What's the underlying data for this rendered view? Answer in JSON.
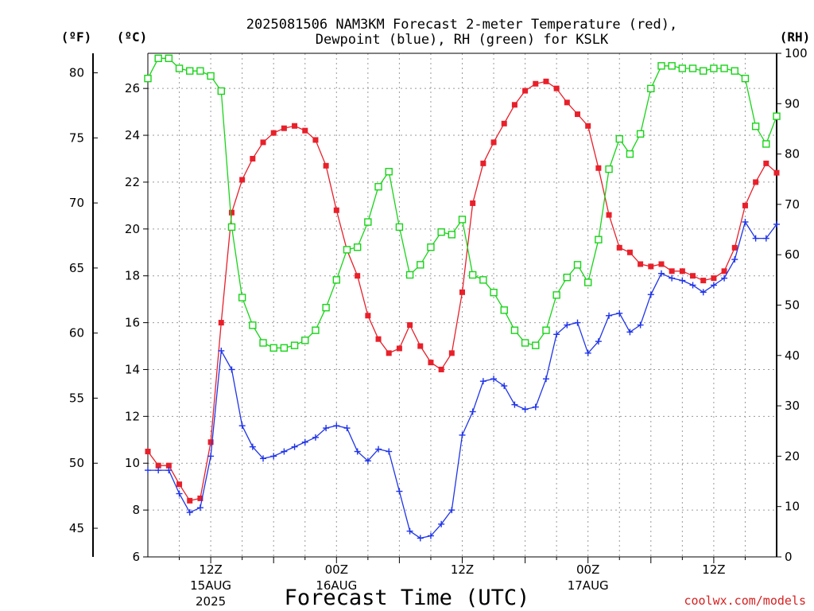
{
  "chart_data": {
    "type": "line",
    "title_line1": "2025081506 NAM3KM Forecast 2-meter Temperature (red),",
    "title_line2": "Dewpoint (blue), RH (green) for KSLK",
    "xlabel": "Forecast Time (UTC)",
    "credit": "coolwx.com/models",
    "units": {
      "left_f": "(ºF)",
      "left_c": "(ºC)",
      "right": "(RH)"
    },
    "celsius_axis": {
      "ylim": [
        6,
        27.5
      ],
      "ticks": [
        6,
        8,
        10,
        12,
        14,
        16,
        18,
        20,
        22,
        24,
        26
      ]
    },
    "fahrenheit_axis": {
      "ticks": [
        45,
        50,
        55,
        60,
        65,
        70,
        75,
        80
      ]
    },
    "rh_axis": {
      "ylim": [
        0,
        100
      ],
      "ticks": [
        0,
        10,
        20,
        30,
        40,
        50,
        60,
        70,
        80,
        90,
        100
      ]
    },
    "x_ticks": [
      {
        "hour": 6,
        "line1": "12Z",
        "line2": "15AUG",
        "line3": "2025"
      },
      {
        "hour": 18,
        "line1": "00Z",
        "line2": "16AUG",
        "line3": ""
      },
      {
        "hour": 30,
        "line1": "12Z",
        "line2": "",
        "line3": ""
      },
      {
        "hour": 42,
        "line1": "00Z",
        "line2": "17AUG",
        "line3": ""
      },
      {
        "hour": 54,
        "line1": "12Z",
        "line2": "",
        "line3": ""
      }
    ],
    "xlim": [
      0,
      60
    ],
    "grid": true,
    "series": [
      {
        "name": "Temperature (red)",
        "color": "#e8202a",
        "marker": "filled-square",
        "axis": "celsius",
        "x": [
          0,
          1,
          2,
          3,
          4,
          5,
          6,
          7,
          8,
          9,
          10,
          11,
          12,
          13,
          14,
          15,
          16,
          17,
          18,
          19,
          20,
          21,
          22,
          23,
          24,
          25,
          26,
          27,
          28,
          29,
          30,
          31,
          32,
          33,
          34,
          35,
          36,
          37,
          38,
          39,
          40,
          41,
          42,
          43,
          44,
          45,
          46,
          47,
          48,
          49,
          50,
          51,
          52,
          53,
          54,
          55,
          56,
          57,
          58,
          59,
          60
        ],
        "values": [
          10.5,
          9.9,
          9.9,
          9.1,
          8.4,
          8.5,
          10.9,
          16.0,
          20.7,
          22.1,
          23.0,
          23.7,
          24.1,
          24.3,
          24.4,
          24.2,
          23.8,
          22.7,
          20.8,
          19.1,
          18.0,
          16.3,
          15.3,
          14.7,
          14.9,
          15.9,
          15.0,
          14.3,
          14.0,
          14.7,
          17.3,
          21.1,
          22.8,
          23.7,
          24.5,
          25.3,
          25.9,
          26.2,
          26.3,
          26.0,
          25.4,
          24.9,
          24.4,
          22.6,
          20.6,
          19.2,
          19.0,
          18.5,
          18.4,
          18.5,
          18.2,
          18.2,
          18.0,
          17.8,
          17.9,
          18.2,
          19.2,
          21.0,
          22.0,
          22.8,
          22.4
        ]
      },
      {
        "name": "Dewpoint (blue)",
        "color": "#2035e8",
        "marker": "plus",
        "axis": "celsius",
        "x": [
          0,
          1,
          2,
          3,
          4,
          5,
          6,
          7,
          8,
          9,
          10,
          11,
          12,
          13,
          14,
          15,
          16,
          17,
          18,
          19,
          20,
          21,
          22,
          23,
          24,
          25,
          26,
          27,
          28,
          29,
          30,
          31,
          32,
          33,
          34,
          35,
          36,
          37,
          38,
          39,
          40,
          41,
          42,
          43,
          44,
          45,
          46,
          47,
          48,
          49,
          50,
          51,
          52,
          53,
          54,
          55,
          56,
          57,
          58,
          59,
          60
        ],
        "values": [
          9.7,
          9.7,
          9.7,
          8.7,
          7.9,
          8.1,
          10.3,
          14.8,
          14.0,
          11.6,
          10.7,
          10.2,
          10.3,
          10.5,
          10.7,
          10.9,
          11.1,
          11.5,
          11.6,
          11.5,
          10.5,
          10.1,
          10.6,
          10.5,
          8.8,
          7.1,
          6.8,
          6.9,
          7.4,
          8.0,
          11.2,
          12.2,
          13.5,
          13.6,
          13.3,
          12.5,
          12.3,
          12.4,
          13.6,
          15.5,
          15.9,
          16.0,
          14.7,
          15.2,
          16.3,
          16.4,
          15.6,
          15.9,
          17.2,
          18.1,
          17.9,
          17.8,
          17.6,
          17.3,
          17.6,
          17.9,
          18.7,
          20.3,
          19.6,
          19.6,
          20.2
        ]
      },
      {
        "name": "RH (green)",
        "color": "#18d418",
        "marker": "open-square",
        "axis": "rh",
        "x": [
          0,
          1,
          2,
          3,
          4,
          5,
          6,
          7,
          8,
          9,
          10,
          11,
          12,
          13,
          14,
          15,
          16,
          17,
          18,
          19,
          20,
          21,
          22,
          23,
          24,
          25,
          26,
          27,
          28,
          29,
          30,
          31,
          32,
          33,
          34,
          35,
          36,
          37,
          38,
          39,
          40,
          41,
          42,
          43,
          44,
          45,
          46,
          47,
          48,
          49,
          50,
          51,
          52,
          53,
          54,
          55,
          56,
          57,
          58,
          59,
          60
        ],
        "values": [
          95,
          99,
          99,
          97,
          96.5,
          96.5,
          95.5,
          92.5,
          65.5,
          51.5,
          46,
          42.5,
          41.5,
          41.5,
          42,
          43,
          45,
          49.5,
          55,
          61,
          61.5,
          66.5,
          73.5,
          76.5,
          65.5,
          56,
          58,
          61.5,
          64.5,
          64,
          67,
          56,
          55,
          52.5,
          49,
          45,
          42.5,
          42,
          45,
          52,
          55.5,
          58,
          54.5,
          63,
          77,
          83,
          80,
          84,
          93,
          97.5,
          97.5,
          97,
          97,
          96.5,
          97,
          97,
          96.5,
          95,
          85.5,
          82,
          87.5
        ]
      }
    ]
  }
}
